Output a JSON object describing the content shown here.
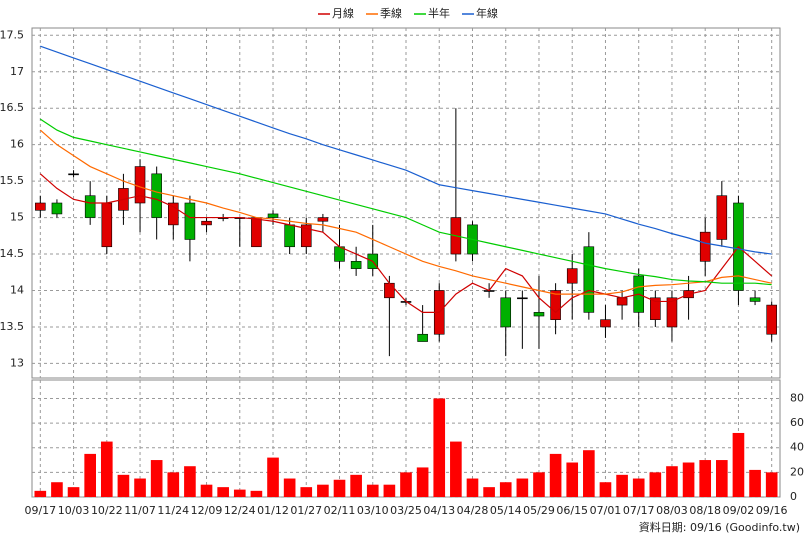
{
  "chart_data": [
    {
      "type": "candlestick",
      "categories": [
        "09/17",
        null,
        "10/03",
        null,
        "10/22",
        null,
        "11/07",
        null,
        "11/24",
        null,
        "12/09",
        null,
        "12/24",
        null,
        "01/12",
        null,
        "01/27",
        null,
        "02/11",
        null,
        "03/10",
        null,
        "03/25",
        null,
        "04/13",
        null,
        "04/28",
        null,
        "05/14",
        null,
        "05/29",
        null,
        "06/15",
        null,
        "07/01",
        null,
        "07/17",
        null,
        "08/03",
        null,
        "08/18",
        null,
        "09/02",
        null,
        "09/16"
      ],
      "open": [
        15.1,
        15.2,
        15.6,
        15.3,
        14.6,
        15.1,
        15.2,
        15.6,
        14.9,
        15.2,
        14.9,
        15.0,
        15.0,
        14.6,
        15.05,
        14.9,
        14.6,
        14.95,
        14.6,
        14.4,
        14.5,
        13.9,
        13.85,
        13.4,
        13.4,
        14.5,
        14.9,
        14.0,
        13.9,
        13.9,
        13.7,
        13.6,
        14.1,
        14.6,
        13.5,
        13.8,
        14.2,
        13.6,
        13.5,
        13.9,
        14.4,
        14.7,
        15.2,
        13.9,
        13.4
      ],
      "high": [
        15.3,
        15.25,
        15.65,
        15.5,
        15.3,
        15.6,
        15.8,
        15.7,
        15.3,
        15.3,
        15.0,
        15.05,
        15.0,
        15.0,
        15.1,
        15.0,
        15.0,
        15.05,
        14.9,
        14.6,
        14.9,
        14.2,
        13.9,
        13.8,
        14.1,
        16.5,
        14.95,
        14.1,
        14.0,
        14.0,
        14.2,
        14.1,
        14.5,
        14.8,
        13.8,
        14.0,
        14.3,
        14.0,
        14.0,
        14.2,
        15.0,
        15.5,
        15.3,
        14.0,
        13.85
      ],
      "low": [
        15.0,
        15.0,
        15.55,
        14.9,
        14.5,
        14.9,
        14.8,
        14.7,
        14.7,
        14.4,
        14.8,
        14.95,
        14.6,
        14.6,
        14.9,
        14.5,
        14.5,
        14.8,
        14.3,
        14.2,
        14.2,
        13.1,
        13.8,
        13.3,
        13.3,
        14.4,
        14.4,
        13.9,
        13.1,
        13.2,
        13.2,
        13.4,
        13.6,
        13.6,
        13.35,
        13.6,
        13.5,
        13.5,
        13.3,
        13.6,
        14.2,
        14.6,
        13.8,
        13.8,
        13.3
      ],
      "close": [
        15.2,
        15.05,
        15.6,
        15.0,
        15.2,
        15.4,
        15.7,
        15.0,
        15.2,
        14.7,
        14.95,
        15.0,
        15.0,
        15.0,
        15.0,
        14.6,
        14.9,
        15.0,
        14.4,
        14.3,
        14.3,
        14.1,
        13.85,
        13.3,
        14.0,
        15.0,
        14.5,
        14.0,
        13.5,
        13.9,
        13.65,
        14.0,
        14.3,
        13.7,
        13.6,
        13.9,
        13.7,
        13.9,
        13.9,
        14.0,
        14.8,
        15.3,
        14.0,
        13.85,
        13.8
      ],
      "up_color": "#e00000",
      "down_color": "#00b000",
      "series": [
        {
          "name": "月線",
          "color": "#d00000",
          "values": [
            15.6,
            15.4,
            15.25,
            15.2,
            15.2,
            15.25,
            15.3,
            15.25,
            15.15,
            15.0,
            15.0,
            15.0,
            15.0,
            14.98,
            14.95,
            14.9,
            14.85,
            14.8,
            14.6,
            14.5,
            14.4,
            14.1,
            13.85,
            13.7,
            13.7,
            13.95,
            14.1,
            14.0,
            14.3,
            14.2,
            13.9,
            13.7,
            13.9,
            14.0,
            13.95,
            13.9,
            13.95,
            13.85,
            13.85,
            13.95,
            14.0,
            14.3,
            14.6,
            14.4,
            14.2
          ]
        },
        {
          "name": "季線",
          "color": "#ff6a00",
          "values": [
            16.2,
            16.0,
            15.85,
            15.7,
            15.6,
            15.5,
            15.42,
            15.35,
            15.3,
            15.25,
            15.2,
            15.13,
            15.07,
            15.0,
            14.98,
            14.95,
            14.92,
            14.9,
            14.85,
            14.8,
            14.7,
            14.6,
            14.5,
            14.4,
            14.33,
            14.27,
            14.2,
            14.15,
            14.1,
            14.05,
            14.0,
            13.95,
            13.95,
            13.95,
            13.95,
            13.98,
            14.05,
            14.07,
            14.08,
            14.1,
            14.12,
            14.18,
            14.2,
            14.15,
            14.1
          ]
        },
        {
          "name": "半年",
          "color": "#00cc00",
          "values": [
            16.35,
            16.2,
            16.1,
            16.05,
            16.0,
            15.95,
            15.9,
            15.85,
            15.8,
            15.75,
            15.7,
            15.65,
            15.6,
            15.54,
            15.48,
            15.42,
            15.36,
            15.3,
            15.24,
            15.18,
            15.12,
            15.06,
            15.0,
            14.9,
            14.8,
            14.75,
            14.7,
            14.65,
            14.6,
            14.55,
            14.5,
            14.45,
            14.4,
            14.35,
            14.3,
            14.26,
            14.22,
            14.19,
            14.15,
            14.13,
            14.12,
            14.1,
            14.1,
            14.1,
            14.08
          ]
        },
        {
          "name": "年線",
          "color": "#1a5fd0",
          "values": [
            17.35,
            17.27,
            17.19,
            17.11,
            17.03,
            16.95,
            16.87,
            16.79,
            16.71,
            16.63,
            16.55,
            16.47,
            16.39,
            16.31,
            16.23,
            16.15,
            16.08,
            16.0,
            15.93,
            15.86,
            15.79,
            15.72,
            15.65,
            15.55,
            15.45,
            15.41,
            15.37,
            15.33,
            15.29,
            15.25,
            15.21,
            15.17,
            15.13,
            15.09,
            15.05,
            14.98,
            14.91,
            14.85,
            14.78,
            14.72,
            14.65,
            14.61,
            14.57,
            14.53,
            14.5
          ]
        }
      ],
      "ylim": [
        12.8,
        17.6
      ],
      "yticks": [
        13,
        13.5,
        14,
        14.5,
        15,
        15.5,
        16,
        16.5,
        17,
        17.5
      ],
      "grid": true
    },
    {
      "type": "bar",
      "color": "#ff0000",
      "values": [
        5,
        12,
        8,
        35,
        45,
        18,
        15,
        30,
        20,
        25,
        10,
        8,
        6,
        5,
        32,
        15,
        8,
        10,
        14,
        18,
        10,
        10,
        20,
        24,
        80,
        45,
        15,
        8,
        12,
        15,
        20,
        35,
        28,
        38,
        12,
        18,
        15,
        20,
        25,
        28,
        30,
        30,
        52,
        22,
        20
      ],
      "ylim": [
        0,
        95
      ],
      "yticks": [
        0,
        20,
        40,
        60,
        80
      ],
      "grid": true
    }
  ],
  "footer": "資料日期: 09/16 (Goodinfo.tw)"
}
